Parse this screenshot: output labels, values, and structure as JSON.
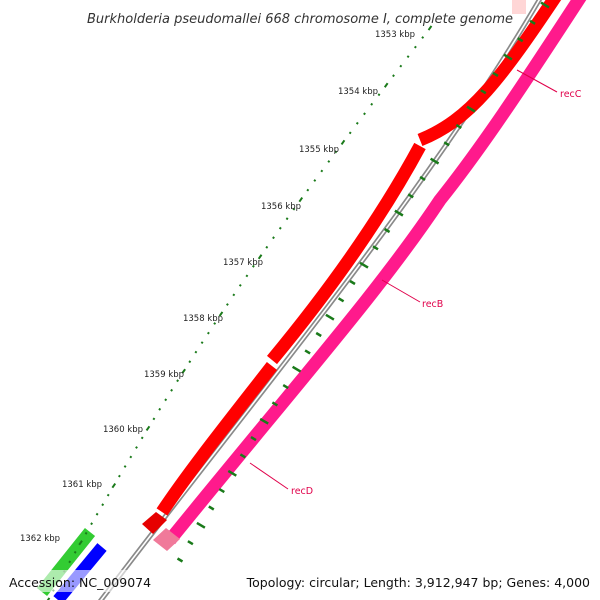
{
  "title": "Burkholderia pseudomallei 668 chromosome I, complete genome",
  "accession": "Accession: NC_009074",
  "summary": "Topology: circular; Length: 3,912,947 bp; Genes: 4,000",
  "ticks": [
    "1353 kbp",
    "1354 kbp",
    "1355 kbp",
    "1356 kbp",
    "1357 kbp",
    "1358 kbp",
    "1359 kbp",
    "1360 kbp",
    "1361 kbp",
    "1362 kbp"
  ],
  "genes": [
    {
      "name": "recC",
      "color": "#e0004a"
    },
    {
      "name": "recB",
      "color": "#e0004a"
    },
    {
      "name": "recD",
      "color": "#e0004a"
    }
  ],
  "colors": {
    "backbone": "#8a8a8a",
    "forward_cds": "#ff0000",
    "reverse_cds": "#ff1a8c",
    "tick": "#1a7a1a",
    "other_cds_green": "#33cc33",
    "other_cds_blue": "#0000ff"
  }
}
